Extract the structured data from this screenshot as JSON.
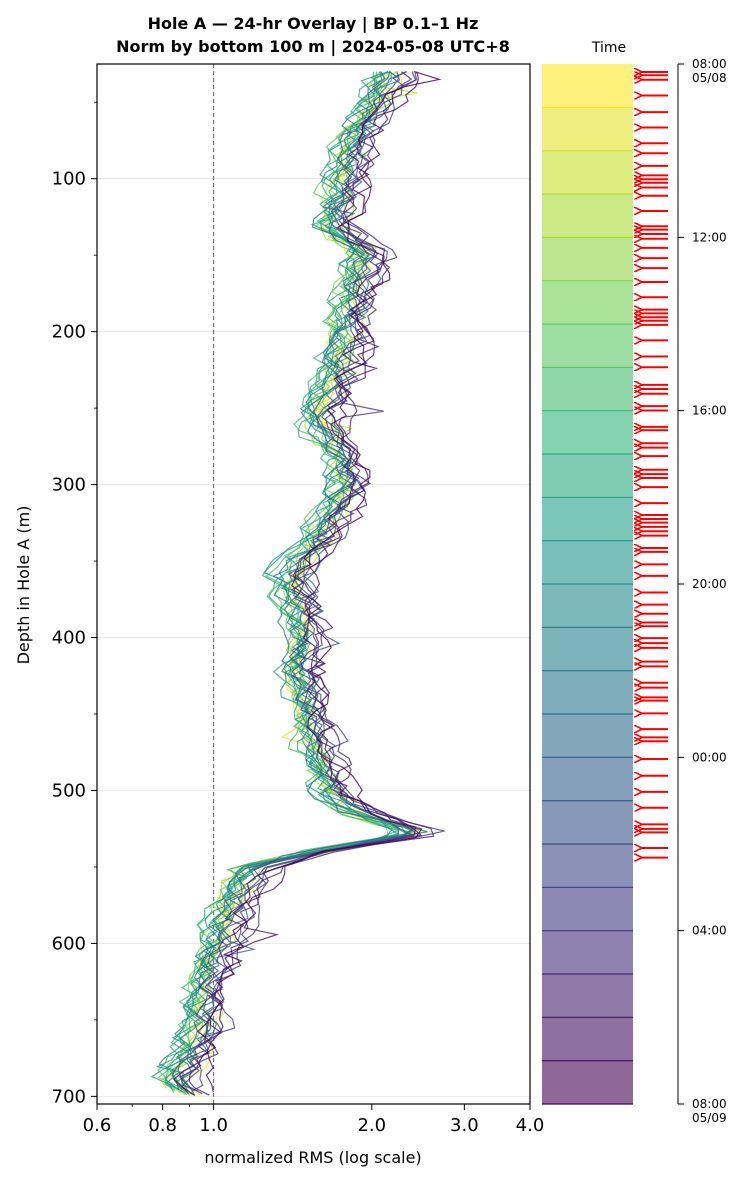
{
  "chart_data": {
    "type": "line",
    "title_line1": "Hole A — 24-hr Overlay  |  BP 0.1–1 Hz",
    "title_line2": "Norm by bottom 100 m  |  2024-05-08 UTC+8",
    "xlabel": "normalized RMS  (log scale)",
    "ylabel": "Depth in Hole A (m)",
    "x_scale": "log",
    "xlim": [
      0.6,
      4.0
    ],
    "ylim": [
      705,
      25
    ],
    "x_ticks": [
      0.6,
      0.8,
      1.0,
      2.0,
      3.0,
      4.0
    ],
    "x_tick_labels": [
      "0.6",
      "0.8",
      "1.0",
      "2.0",
      "3.0",
      "4.0"
    ],
    "y_ticks": [
      100,
      200,
      300,
      400,
      500,
      600,
      700
    ],
    "y_tick_labels": [
      "100",
      "200",
      "300",
      "400",
      "500",
      "600",
      "700"
    ],
    "grid": "horizontal",
    "reference_line_x": 1.0,
    "n_traces": 24,
    "mean_profile": {
      "depth": [
        30,
        60,
        90,
        110,
        130,
        150,
        170,
        200,
        230,
        260,
        280,
        300,
        320,
        340,
        360,
        380,
        400,
        420,
        440,
        460,
        480,
        500,
        515,
        528,
        540,
        550,
        570,
        590,
        610,
        630,
        650,
        670,
        690,
        700
      ],
      "rms": [
        2.2,
        1.95,
        1.8,
        1.75,
        1.65,
        1.95,
        1.85,
        1.8,
        1.7,
        1.6,
        1.75,
        1.8,
        1.7,
        1.55,
        1.4,
        1.45,
        1.5,
        1.45,
        1.5,
        1.55,
        1.6,
        1.65,
        1.9,
        2.5,
        1.6,
        1.2,
        1.1,
        1.05,
        1.0,
        0.95,
        0.95,
        0.92,
        0.85,
        0.9
      ]
    },
    "colorbar": {
      "label": "Time",
      "colormap": "viridis",
      "tick_labels": [
        "08:00\n05/08",
        "12:00",
        "16:00",
        "20:00",
        "00:00",
        "04:00",
        "08:00\n05/09"
      ],
      "tick_hours": [
        0,
        4,
        8,
        12,
        16,
        20,
        24
      ],
      "hours_span": 24,
      "band_alpha": 0.6
    },
    "event_markers": {
      "color": "#ff0000",
      "count": 84
    }
  }
}
